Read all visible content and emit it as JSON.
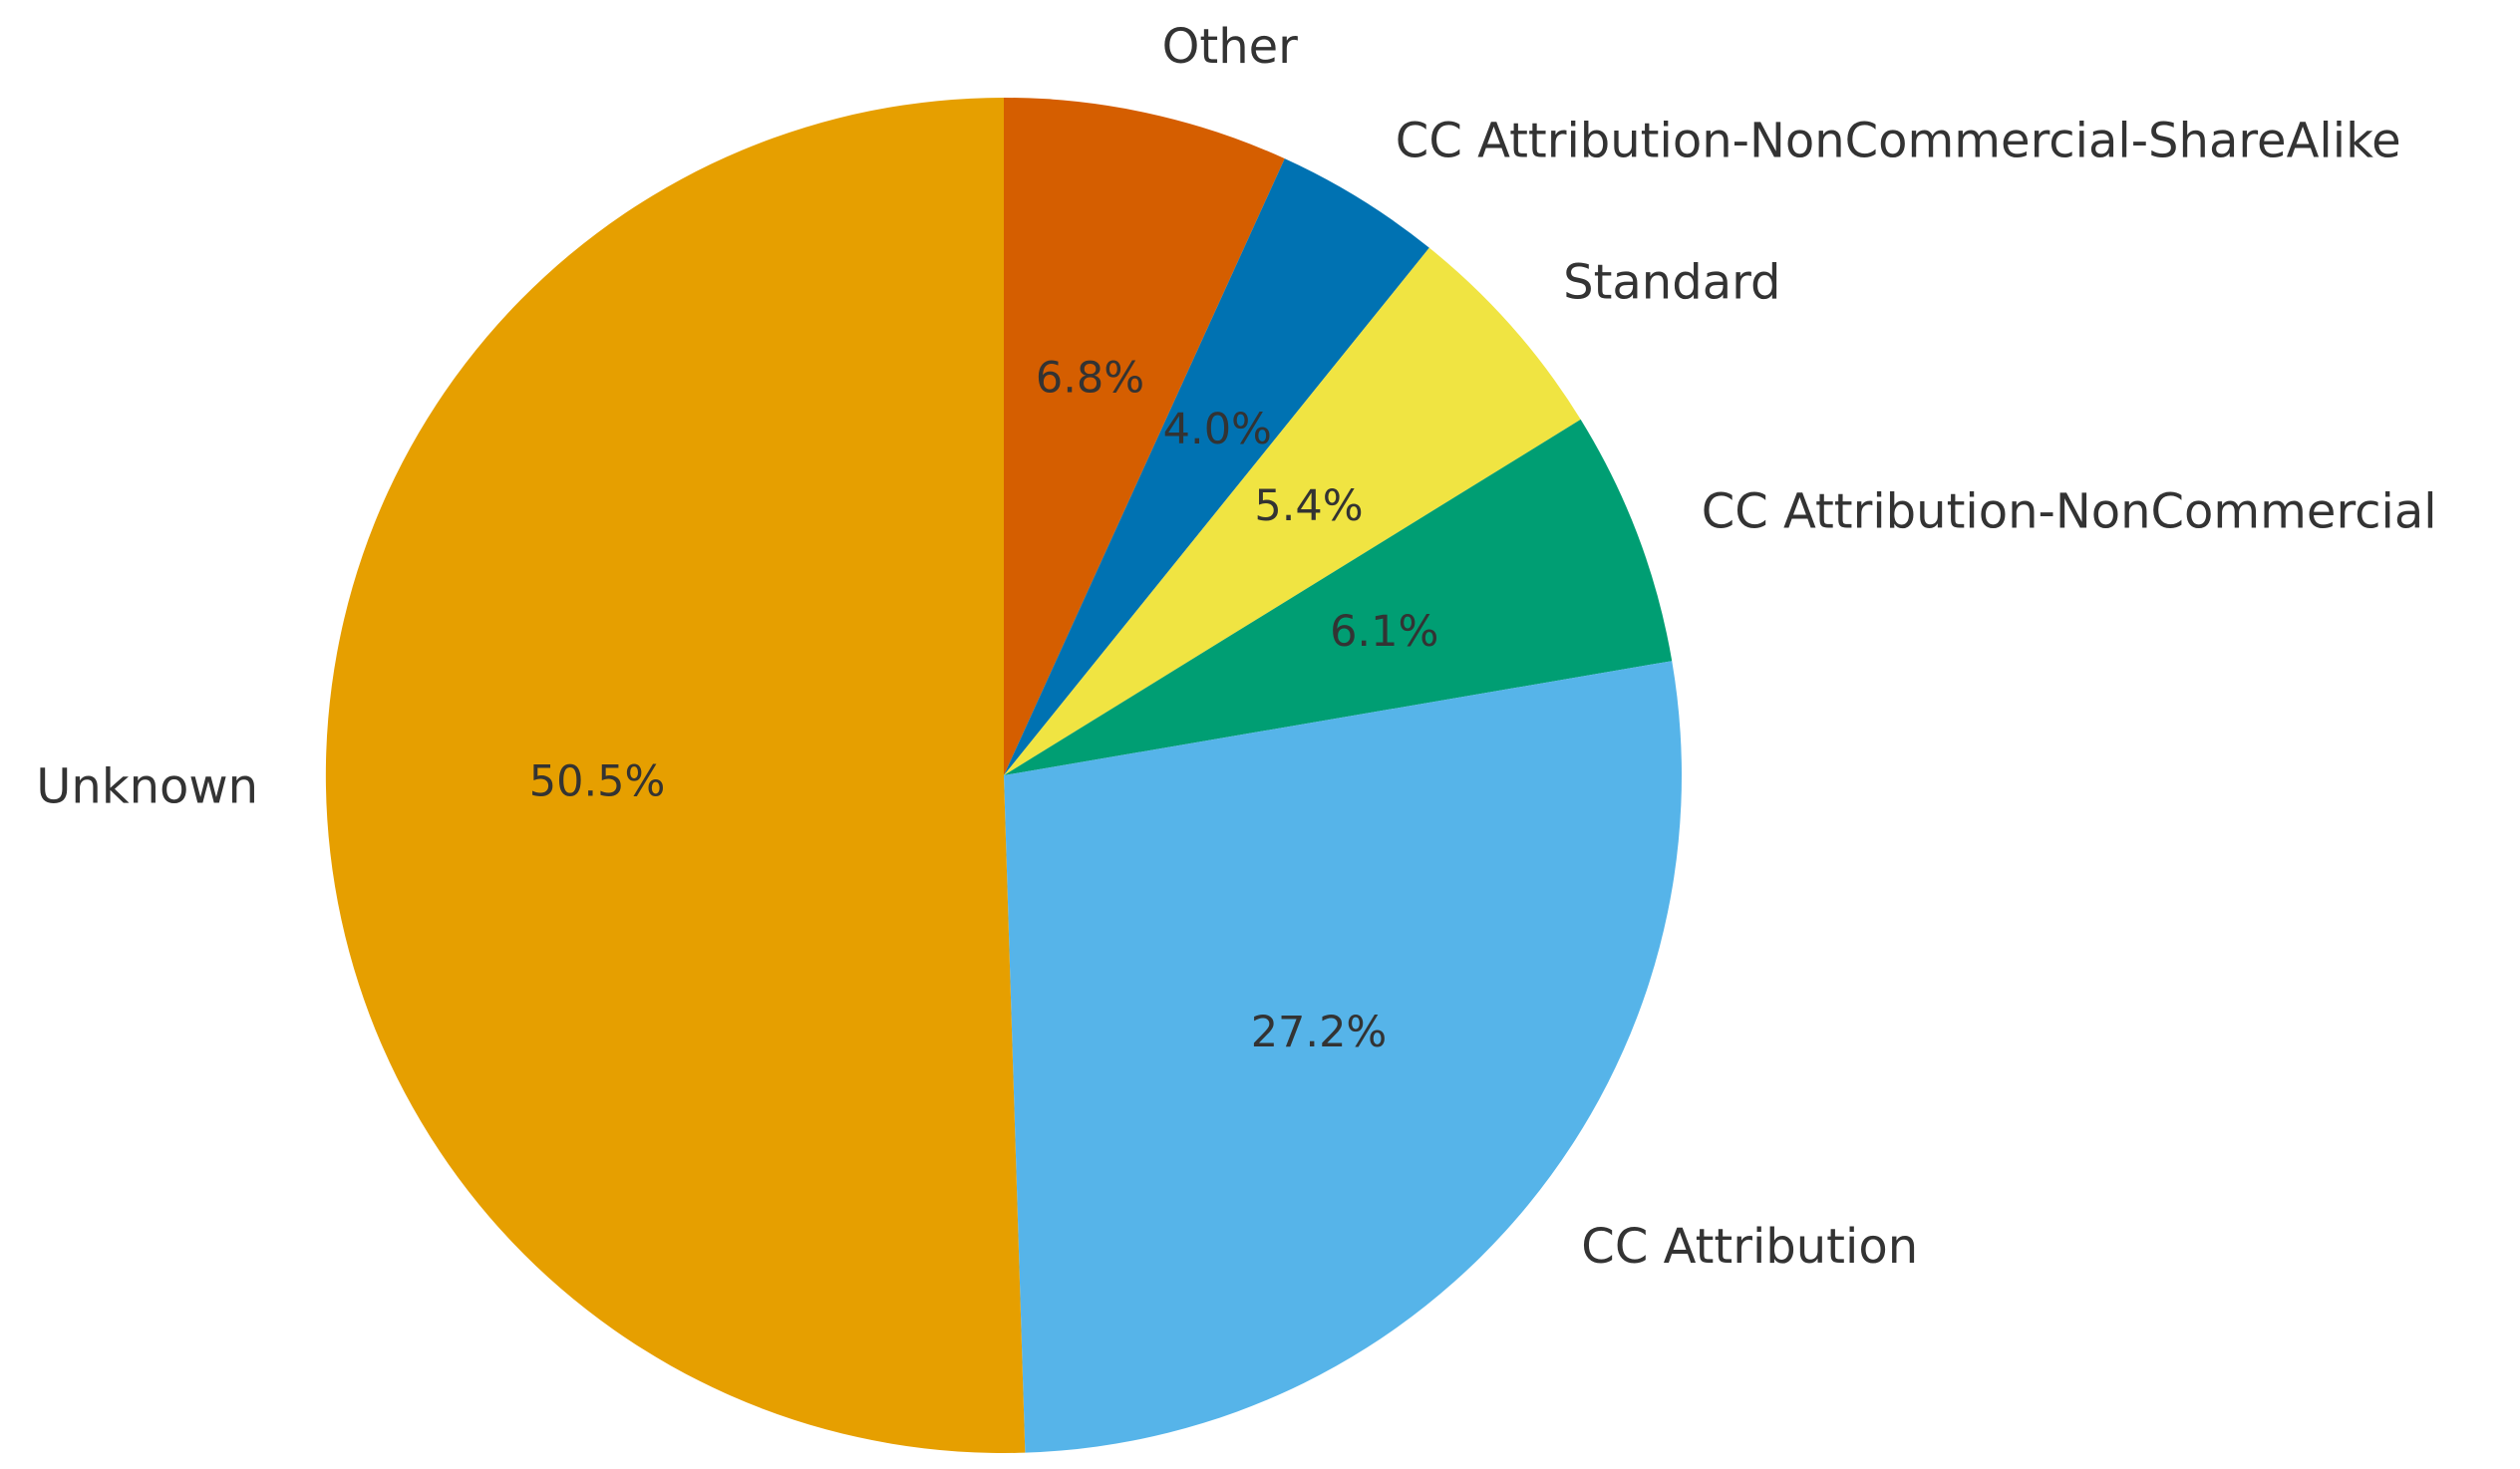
{
  "chart_data": {
    "type": "pie",
    "categories": [
      "Other",
      "CC Attribution-NonCommercial-ShareAlike",
      "Standard",
      "CC Attribution-NonCommercial",
      "CC Attribution",
      "Unknown"
    ],
    "values": [
      6.8,
      4.0,
      5.4,
      6.1,
      27.2,
      50.5
    ],
    "value_labels": [
      "6.8%",
      "4.0%",
      "5.4%",
      "6.1%",
      "27.2%",
      "50.5%"
    ],
    "colors": [
      "#D55E00",
      "#0072B2",
      "#F0E442",
      "#009E73",
      "#56B4E9",
      "#E69F00"
    ],
    "start_angle_deg": 90,
    "direction": "clockwise",
    "legend": "none"
  }
}
